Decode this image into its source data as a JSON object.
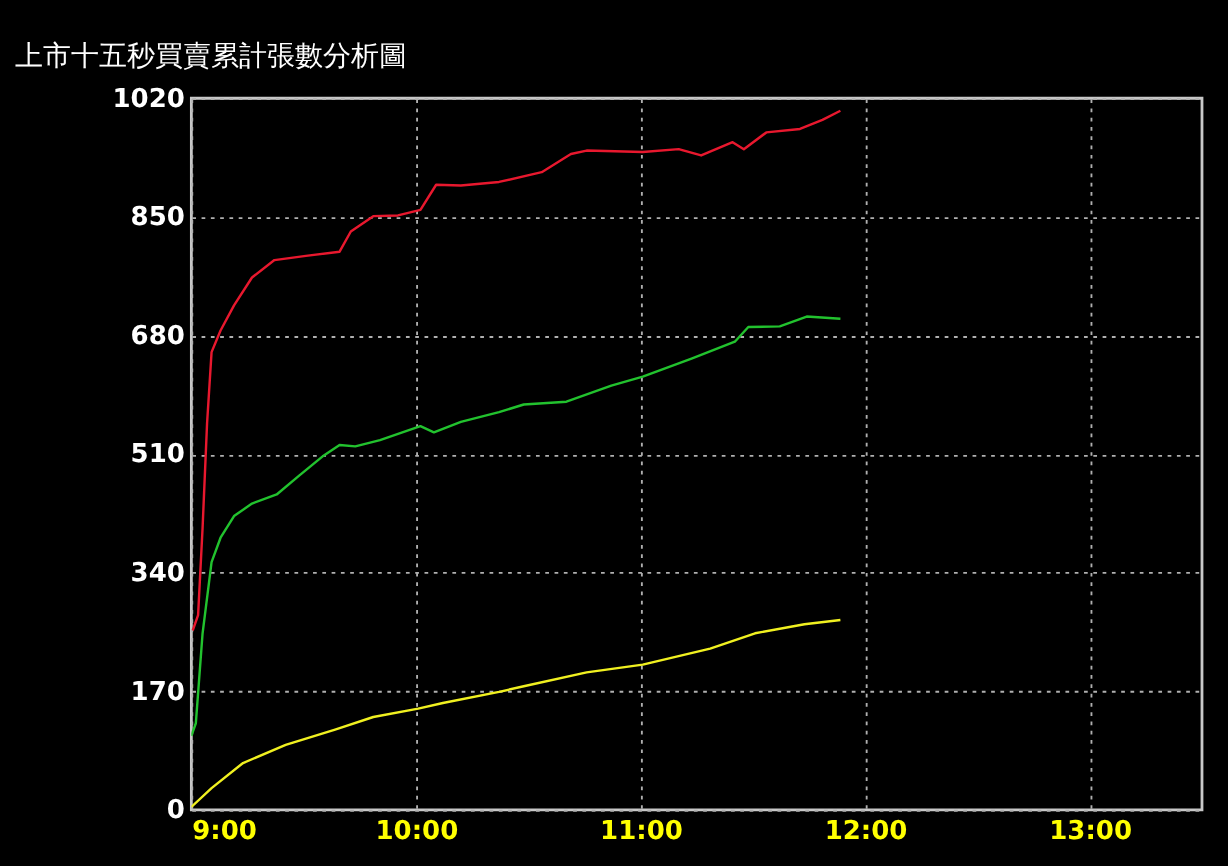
{
  "chart_data": {
    "type": "line",
    "title": "上市十五秒買賣累計張數分析圖",
    "xlim": [
      9,
      13.5
    ],
    "xticks": [
      {
        "value": 9,
        "label": "9:00"
      },
      {
        "value": 10,
        "label": "10:00"
      },
      {
        "value": 11,
        "label": "11:00"
      },
      {
        "value": 12,
        "label": "12:00"
      },
      {
        "value": 13,
        "label": "13:00"
      }
    ],
    "ylim": [
      0,
      1020
    ],
    "yticks": [
      0,
      170,
      340,
      510,
      680,
      850,
      1020
    ],
    "grid": true,
    "marker": "none",
    "line_style": "solid",
    "series": [
      {
        "color": "#e8182e",
        "x": [
          9.006,
          9.03,
          9.05,
          9.07,
          9.09,
          9.13,
          9.19,
          9.27,
          9.37,
          9.51,
          9.66,
          9.71,
          9.81,
          9.92,
          10.02,
          10.09,
          10.2,
          10.37,
          10.56,
          10.69,
          10.76,
          11.01,
          11.17,
          11.27,
          11.41,
          11.46,
          11.56,
          11.71,
          11.81,
          11.89
        ],
        "values": [
          257,
          279,
          404,
          554,
          656,
          687,
          723,
          763,
          788,
          794,
          800,
          829,
          851,
          852,
          860,
          896,
          895,
          900,
          914,
          940,
          945,
          943,
          947,
          938,
          957,
          947,
          971,
          976,
          989,
          1002
        ]
      },
      {
        "color": "#22c22e",
        "x": [
          9.0,
          9.02,
          9.05,
          9.09,
          9.13,
          9.19,
          9.27,
          9.38,
          9.48,
          9.59,
          9.66,
          9.73,
          9.84,
          10.02,
          10.08,
          10.2,
          10.37,
          10.48,
          10.67,
          10.87,
          11.01,
          11.23,
          11.42,
          11.48,
          11.62,
          11.74,
          11.89
        ],
        "values": [
          106,
          124,
          253,
          355,
          390,
          421,
          439,
          452,
          479,
          508,
          523,
          521,
          530,
          550,
          541,
          556,
          570,
          581,
          585,
          608,
          621,
          647,
          671,
          692,
          693,
          707,
          704
        ]
      },
      {
        "color": "#f0f020",
        "x": [
          9.0,
          9.09,
          9.23,
          9.42,
          9.64,
          9.81,
          10.01,
          10.12,
          10.37,
          10.48,
          10.76,
          11.01,
          11.31,
          11.51,
          11.73,
          11.89
        ],
        "values": [
          4,
          31,
          67,
          93,
          115,
          133,
          145,
          153,
          169,
          177,
          197,
          208,
          231,
          253,
          266,
          272
        ]
      }
    ]
  }
}
